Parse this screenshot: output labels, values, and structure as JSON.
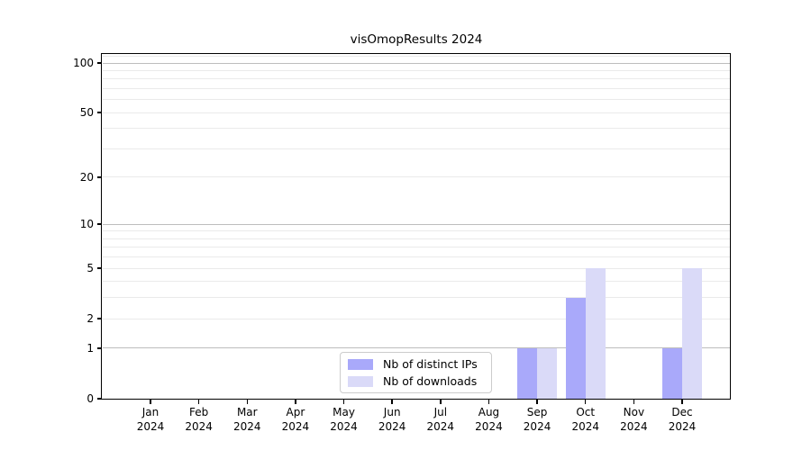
{
  "title": "visOmopResults 2024",
  "chart_data": {
    "type": "bar",
    "title": "visOmopResults 2024",
    "categories": [
      "Jan 2024",
      "Feb 2024",
      "Mar 2024",
      "Apr 2024",
      "May 2024",
      "Jun 2024",
      "Jul 2024",
      "Aug 2024",
      "Sep 2024",
      "Oct 2024",
      "Nov 2024",
      "Dec 2024"
    ],
    "series": [
      {
        "name": "Nb of distinct IPs",
        "color": "#a9a9fa",
        "values": [
          0,
          0,
          0,
          0,
          0,
          0,
          0,
          0,
          1,
          3,
          0,
          1
        ]
      },
      {
        "name": "Nb of downloads",
        "color": "#dadaf8",
        "values": [
          0,
          0,
          0,
          0,
          0,
          0,
          0,
          0,
          1,
          5,
          0,
          5
        ]
      }
    ],
    "xlabel": "",
    "ylabel": "",
    "yscale": "log1p",
    "ylim": [
      0,
      115
    ],
    "yticks": [
      0,
      1,
      2,
      5,
      10,
      20,
      50,
      100
    ],
    "major_gridlines": [
      1,
      10,
      100
    ],
    "minor_gridlines": [
      2,
      3,
      4,
      5,
      6,
      7,
      8,
      9,
      20,
      30,
      40,
      50,
      60,
      70,
      80,
      90,
      110
    ],
    "grid": true,
    "legend_position": "lower center"
  },
  "colors": {
    "series_1": "#a9a9fa",
    "series_2": "#dadaf8",
    "grid_major": "#bdbdbd",
    "grid_minor": "#eaeaea",
    "axis": "#000000",
    "legend_border": "#cccccc",
    "background": "#ffffff"
  }
}
